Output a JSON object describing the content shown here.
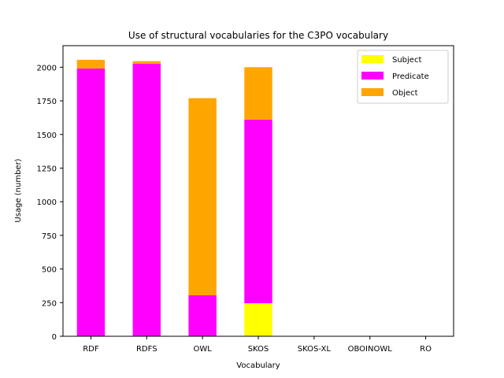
{
  "chart_data": {
    "type": "bar",
    "stacked": true,
    "title": "Use of structural vocabularies for the C3PO vocabulary",
    "xlabel": "Vocabulary",
    "ylabel": "Usage (number)",
    "categories": [
      "RDF",
      "RDFS",
      "OWL",
      "SKOS",
      "SKOS-XL",
      "OBOINOWL",
      "RO"
    ],
    "series": [
      {
        "name": "Subject",
        "color": "#ffff00",
        "values": [
          0,
          0,
          0,
          245,
          0,
          0,
          0
        ]
      },
      {
        "name": "Predicate",
        "color": "#ff00ff",
        "values": [
          1990,
          2025,
          305,
          1365,
          0,
          0,
          0
        ]
      },
      {
        "name": "Object",
        "color": "#ffa500",
        "values": [
          65,
          20,
          1465,
          390,
          0,
          0,
          0
        ]
      }
    ],
    "ylim": [
      0,
      2160
    ],
    "yticks": [
      0,
      250,
      500,
      750,
      1000,
      1250,
      1500,
      1750,
      2000
    ],
    "grid": false,
    "legend_position": "top-right"
  }
}
